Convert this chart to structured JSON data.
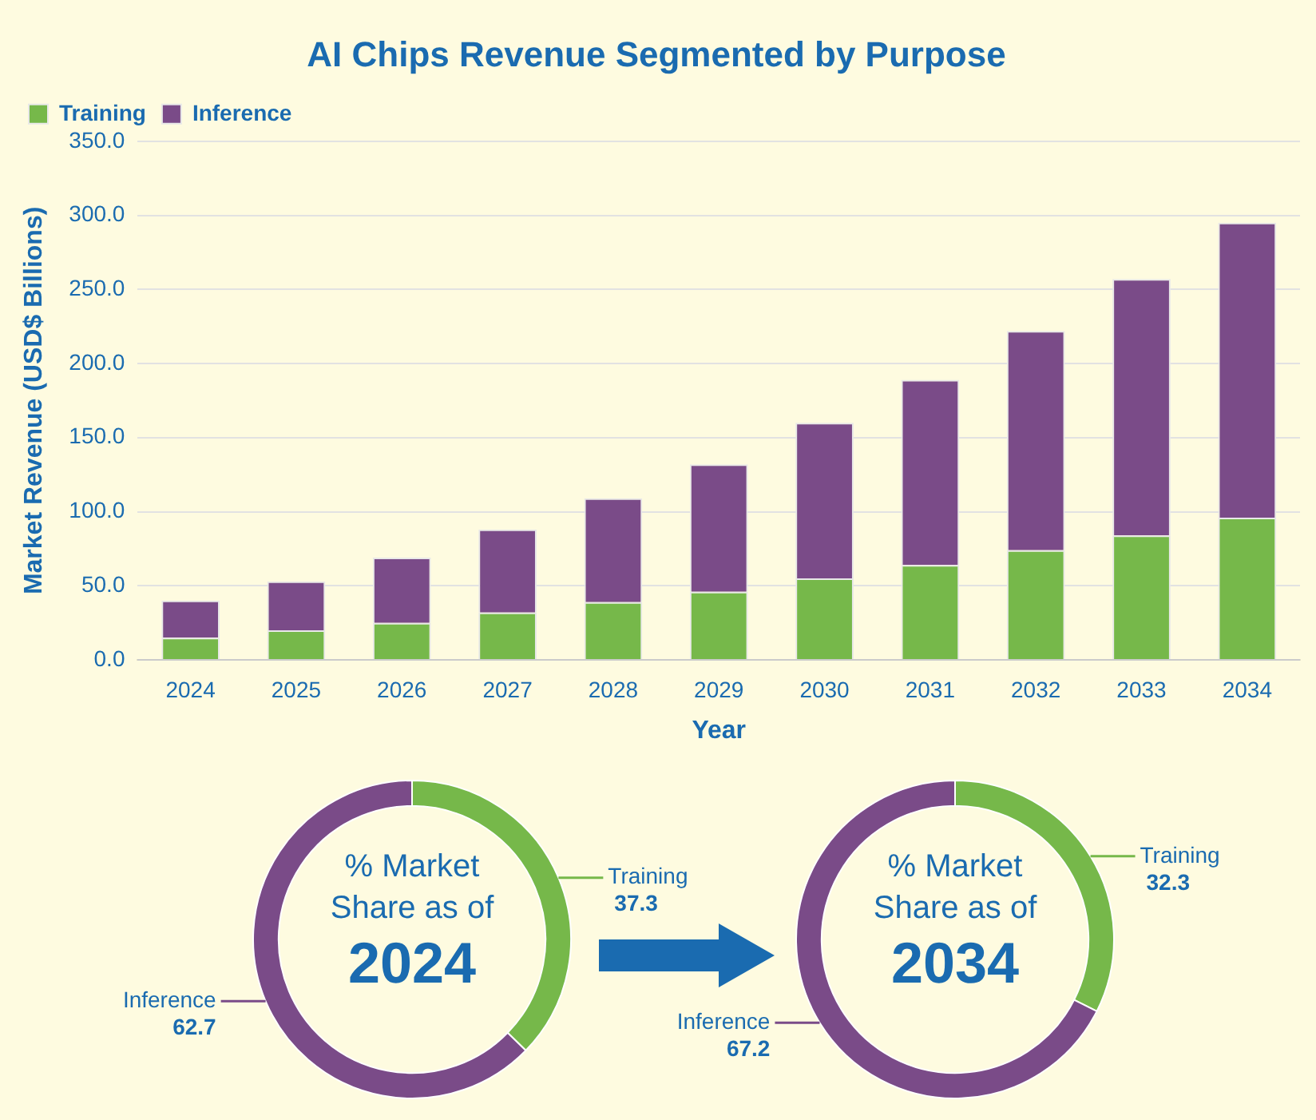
{
  "chart_data": [
    {
      "type": "bar",
      "title": "AI Chips Revenue Segmented by Purpose",
      "xlabel": "Year",
      "ylabel": "Market Revenue (USD$ Billions)",
      "categories": [
        "2024",
        "2025",
        "2026",
        "2027",
        "2028",
        "2029",
        "2030",
        "2031",
        "2032",
        "2033",
        "2034"
      ],
      "series": [
        {
          "name": "Training",
          "color": "#76b84a",
          "values": [
            15,
            20,
            25,
            32,
            39,
            46,
            55,
            64,
            74,
            84,
            96
          ]
        },
        {
          "name": "Inference",
          "color": "#7a4b88",
          "values": [
            25,
            33,
            44,
            56,
            70,
            86,
            105,
            125,
            148,
            173,
            199
          ]
        }
      ],
      "stacked": true,
      "ylim": [
        0,
        350
      ],
      "yticks": [
        {
          "value": 0,
          "label": "0.0"
        },
        {
          "value": 50,
          "label": "50.0"
        },
        {
          "value": 100,
          "label": "100.0"
        },
        {
          "value": 150,
          "label": "150.0"
        },
        {
          "value": 200,
          "label": "200.0"
        },
        {
          "value": 250,
          "label": "250.0"
        },
        {
          "value": 300,
          "label": "300.0"
        },
        {
          "value": 350,
          "label": "350.0"
        }
      ],
      "grid": "y",
      "legend": "top left"
    },
    {
      "type": "donut",
      "title": "% Market Share as of 2024",
      "categories": [
        "Training",
        "Inference"
      ],
      "values": [
        37.3,
        62.7
      ],
      "colors": [
        "#76b84a",
        "#7a4b88"
      ],
      "data_labels": true
    },
    {
      "type": "donut",
      "title": "% Market Share as of 2034",
      "categories": [
        "Training",
        "Inference"
      ],
      "values": [
        32.3,
        67.2
      ],
      "colors": [
        "#76b84a",
        "#7a4b88"
      ],
      "data_labels": true
    }
  ]
}
